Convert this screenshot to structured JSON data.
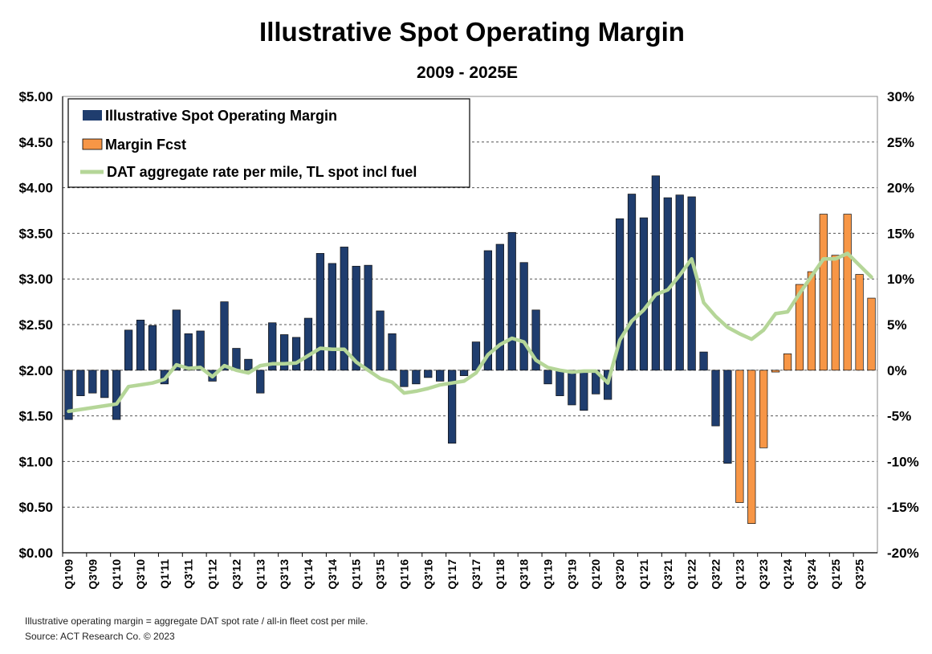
{
  "chart_data": {
    "type": "bar",
    "title": "Illustrative Spot Operating Margin",
    "subtitle": "2009 - 2025E",
    "left_axis": {
      "ylim": [
        0,
        5
      ],
      "tick_values": [
        0,
        0.5,
        1,
        1.5,
        2,
        2.5,
        3,
        3.5,
        4,
        4.5,
        5
      ],
      "tick_labels": [
        "$0.00",
        "$0.50",
        "$1.00",
        "$1.50",
        "$2.00",
        "$2.50",
        "$3.00",
        "$3.50",
        "$4.00",
        "$4.50",
        "$5.00"
      ]
    },
    "right_axis": {
      "ylim": [
        -0.2,
        0.3
      ],
      "tick_values": [
        -0.2,
        -0.15,
        -0.1,
        -0.05,
        0,
        0.05,
        0.1,
        0.15,
        0.2,
        0.25,
        0.3
      ],
      "tick_labels": [
        "-20%",
        "-15%",
        "-10%",
        "-5%",
        "0%",
        "5%",
        "10%",
        "15%",
        "20%",
        "25%",
        "30%"
      ]
    },
    "grid": true,
    "legend_position": "top-left",
    "categories": [
      "Q1'09",
      "Q2'09",
      "Q3'09",
      "Q4'09",
      "Q1'10",
      "Q2'10",
      "Q3'10",
      "Q4'10",
      "Q1'11",
      "Q2'11",
      "Q3'11",
      "Q4'11",
      "Q1'12",
      "Q2'12",
      "Q3'12",
      "Q4'12",
      "Q1'13",
      "Q2'13",
      "Q3'13",
      "Q4'13",
      "Q1'14",
      "Q2'14",
      "Q3'14",
      "Q4'14",
      "Q1'15",
      "Q2'15",
      "Q3'15",
      "Q4'15",
      "Q1'16",
      "Q2'16",
      "Q3'16",
      "Q4'16",
      "Q1'17",
      "Q2'17",
      "Q3'17",
      "Q4'17",
      "Q1'18",
      "Q2'18",
      "Q3'18",
      "Q4'18",
      "Q1'19",
      "Q2'19",
      "Q3'19",
      "Q4'19",
      "Q1'20",
      "Q2'20",
      "Q3'20",
      "Q4'20",
      "Q1'21",
      "Q2'21",
      "Q3'21",
      "Q4'21",
      "Q1'22",
      "Q2'22",
      "Q3'22",
      "Q4'22",
      "Q1'23",
      "Q2'23",
      "Q3'23",
      "Q4'23",
      "Q1'24",
      "Q2'24",
      "Q3'24",
      "Q4'24",
      "Q1'25",
      "Q2'25",
      "Q3'25",
      "Q4'25"
    ],
    "x_tick_labels": [
      "Q1'09",
      "Q3'09",
      "Q1'10",
      "Q3'10",
      "Q1'11",
      "Q3'11",
      "Q1'12",
      "Q3'12",
      "Q1'13",
      "Q3'13",
      "Q1'14",
      "Q3'14",
      "Q1'15",
      "Q3'15",
      "Q1'16",
      "Q3'16",
      "Q1'17",
      "Q3'17",
      "Q1'18",
      "Q3'18",
      "Q1'19",
      "Q3'19",
      "Q1'20",
      "Q3'20",
      "Q1'21",
      "Q3'21",
      "Q1'22",
      "Q3'22",
      "Q1'23",
      "Q3'23",
      "Q1'24",
      "Q3'24",
      "Q1'25",
      "Q3'25"
    ],
    "series": [
      {
        "name": "Illustrative Spot Operating Margin",
        "kind": "bar",
        "axis": "right",
        "color": "#1f3d6e",
        "values": [
          -0.054,
          -0.028,
          -0.025,
          -0.03,
          -0.054,
          0.044,
          0.055,
          0.049,
          -0.015,
          0.066,
          0.04,
          0.043,
          -0.012,
          0.075,
          0.024,
          0.012,
          -0.025,
          0.052,
          0.039,
          0.036,
          0.057,
          0.128,
          0.117,
          0.135,
          0.114,
          0.115,
          0.065,
          0.04,
          -0.018,
          -0.015,
          -0.008,
          -0.012,
          -0.08,
          -0.006,
          0.031,
          0.131,
          0.138,
          0.151,
          0.118,
          0.066,
          -0.015,
          -0.028,
          -0.038,
          -0.044,
          -0.026,
          -0.032,
          0.166,
          0.193,
          0.167,
          0.213,
          0.189,
          0.192,
          0.19,
          0.02,
          -0.061,
          -0.102,
          null,
          null,
          null,
          null,
          null,
          null,
          null,
          null,
          null,
          null,
          null,
          null
        ]
      },
      {
        "name": "Margin Fcst",
        "kind": "bar",
        "axis": "right",
        "color": "#f79646",
        "values": [
          null,
          null,
          null,
          null,
          null,
          null,
          null,
          null,
          null,
          null,
          null,
          null,
          null,
          null,
          null,
          null,
          null,
          null,
          null,
          null,
          null,
          null,
          null,
          null,
          null,
          null,
          null,
          null,
          null,
          null,
          null,
          null,
          null,
          null,
          null,
          null,
          null,
          null,
          null,
          null,
          null,
          null,
          null,
          null,
          null,
          null,
          null,
          null,
          null,
          null,
          null,
          null,
          null,
          null,
          null,
          null,
          -0.145,
          -0.168,
          -0.085,
          -0.002,
          0.018,
          0.094,
          0.108,
          0.171,
          0.126,
          0.171,
          0.105,
          0.079
        ]
      },
      {
        "name": "DAT aggregate rate per mile, TL spot incl fuel",
        "kind": "line",
        "axis": "left",
        "color": "#b5d698",
        "values": [
          1.55,
          1.57,
          1.59,
          1.61,
          1.63,
          1.82,
          1.84,
          1.86,
          1.9,
          2.06,
          2.02,
          2.03,
          1.93,
          2.05,
          2.0,
          1.97,
          2.05,
          2.07,
          2.07,
          2.08,
          2.16,
          2.24,
          2.23,
          2.23,
          2.09,
          2.0,
          1.91,
          1.87,
          1.75,
          1.77,
          1.8,
          1.84,
          1.86,
          1.88,
          1.97,
          2.17,
          2.28,
          2.35,
          2.31,
          2.11,
          2.03,
          2.0,
          1.98,
          1.99,
          1.99,
          1.86,
          2.33,
          2.54,
          2.66,
          2.83,
          2.88,
          3.04,
          3.22,
          2.74,
          2.59,
          2.47,
          2.4,
          2.34,
          2.44,
          2.62,
          2.64,
          2.84,
          3.03,
          3.22,
          3.22,
          3.28,
          3.15,
          3.02
        ]
      }
    ],
    "notes": [
      "Illustrative  operating  margin  =  aggregate  DAT  spot  rate  /  all-in  fleet  cost  per  mile.",
      "Source:  ACT  Research  Co.  ©  2023"
    ]
  }
}
